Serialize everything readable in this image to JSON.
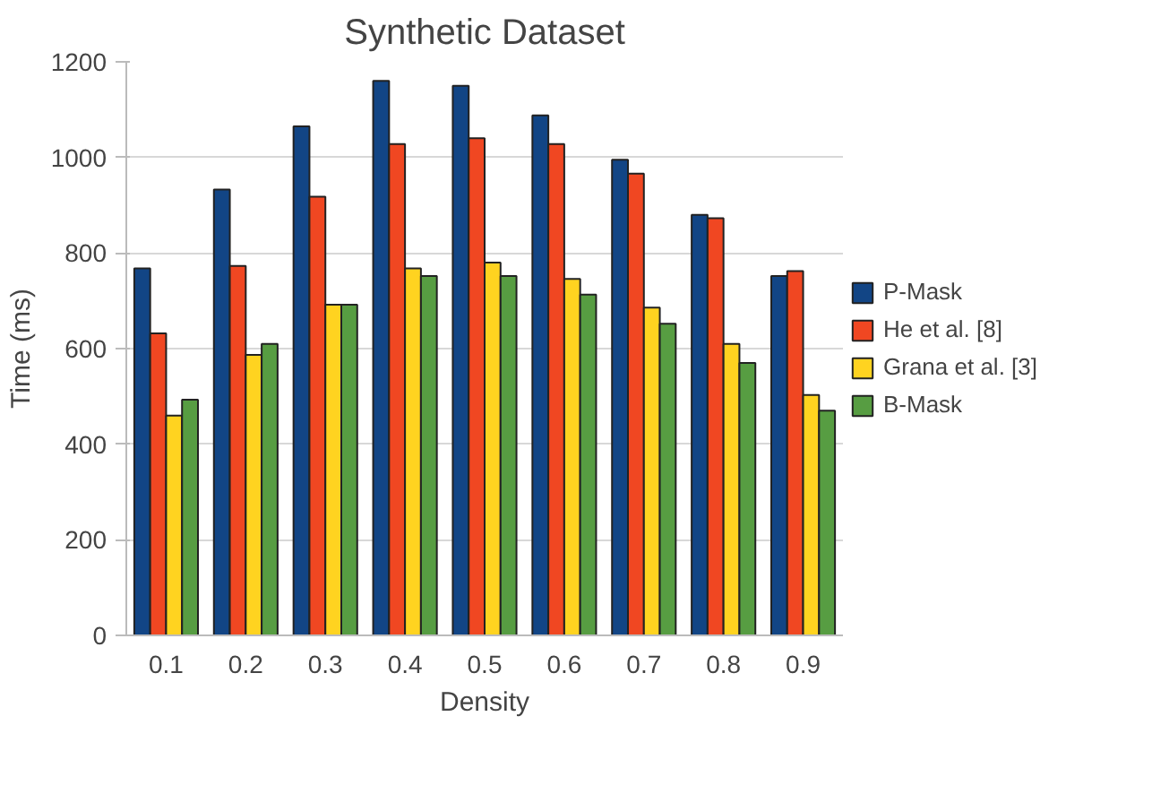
{
  "chart_data": {
    "type": "bar",
    "title": "Synthetic Dataset",
    "xlabel": "Density",
    "ylabel": "Time (ms)",
    "categories": [
      "0.1",
      "0.2",
      "0.3",
      "0.4",
      "0.5",
      "0.6",
      "0.7",
      "0.8",
      "0.9"
    ],
    "series": [
      {
        "name": "P-Mask",
        "color": "#124585",
        "values": [
          768,
          933,
          1065,
          1160,
          1150,
          1088,
          995,
          880,
          752
        ]
      },
      {
        "name": "He et al. [8]",
        "color": "#f04722",
        "values": [
          632,
          773,
          918,
          1028,
          1040,
          1028,
          966,
          873,
          762
        ]
      },
      {
        "name": "Grana et al. [3]",
        "color": "#ffd320",
        "values": [
          460,
          587,
          692,
          768,
          780,
          746,
          686,
          610,
          503
        ]
      },
      {
        "name": "B-Mask",
        "color": "#579d42",
        "values": [
          493,
          610,
          692,
          752,
          752,
          713,
          652,
          570,
          470
        ]
      }
    ],
    "ylim": [
      0,
      1200
    ],
    "yticks": [
      0,
      200,
      400,
      600,
      800,
      1000,
      1200
    ],
    "grid": "y",
    "legend": "right"
  }
}
